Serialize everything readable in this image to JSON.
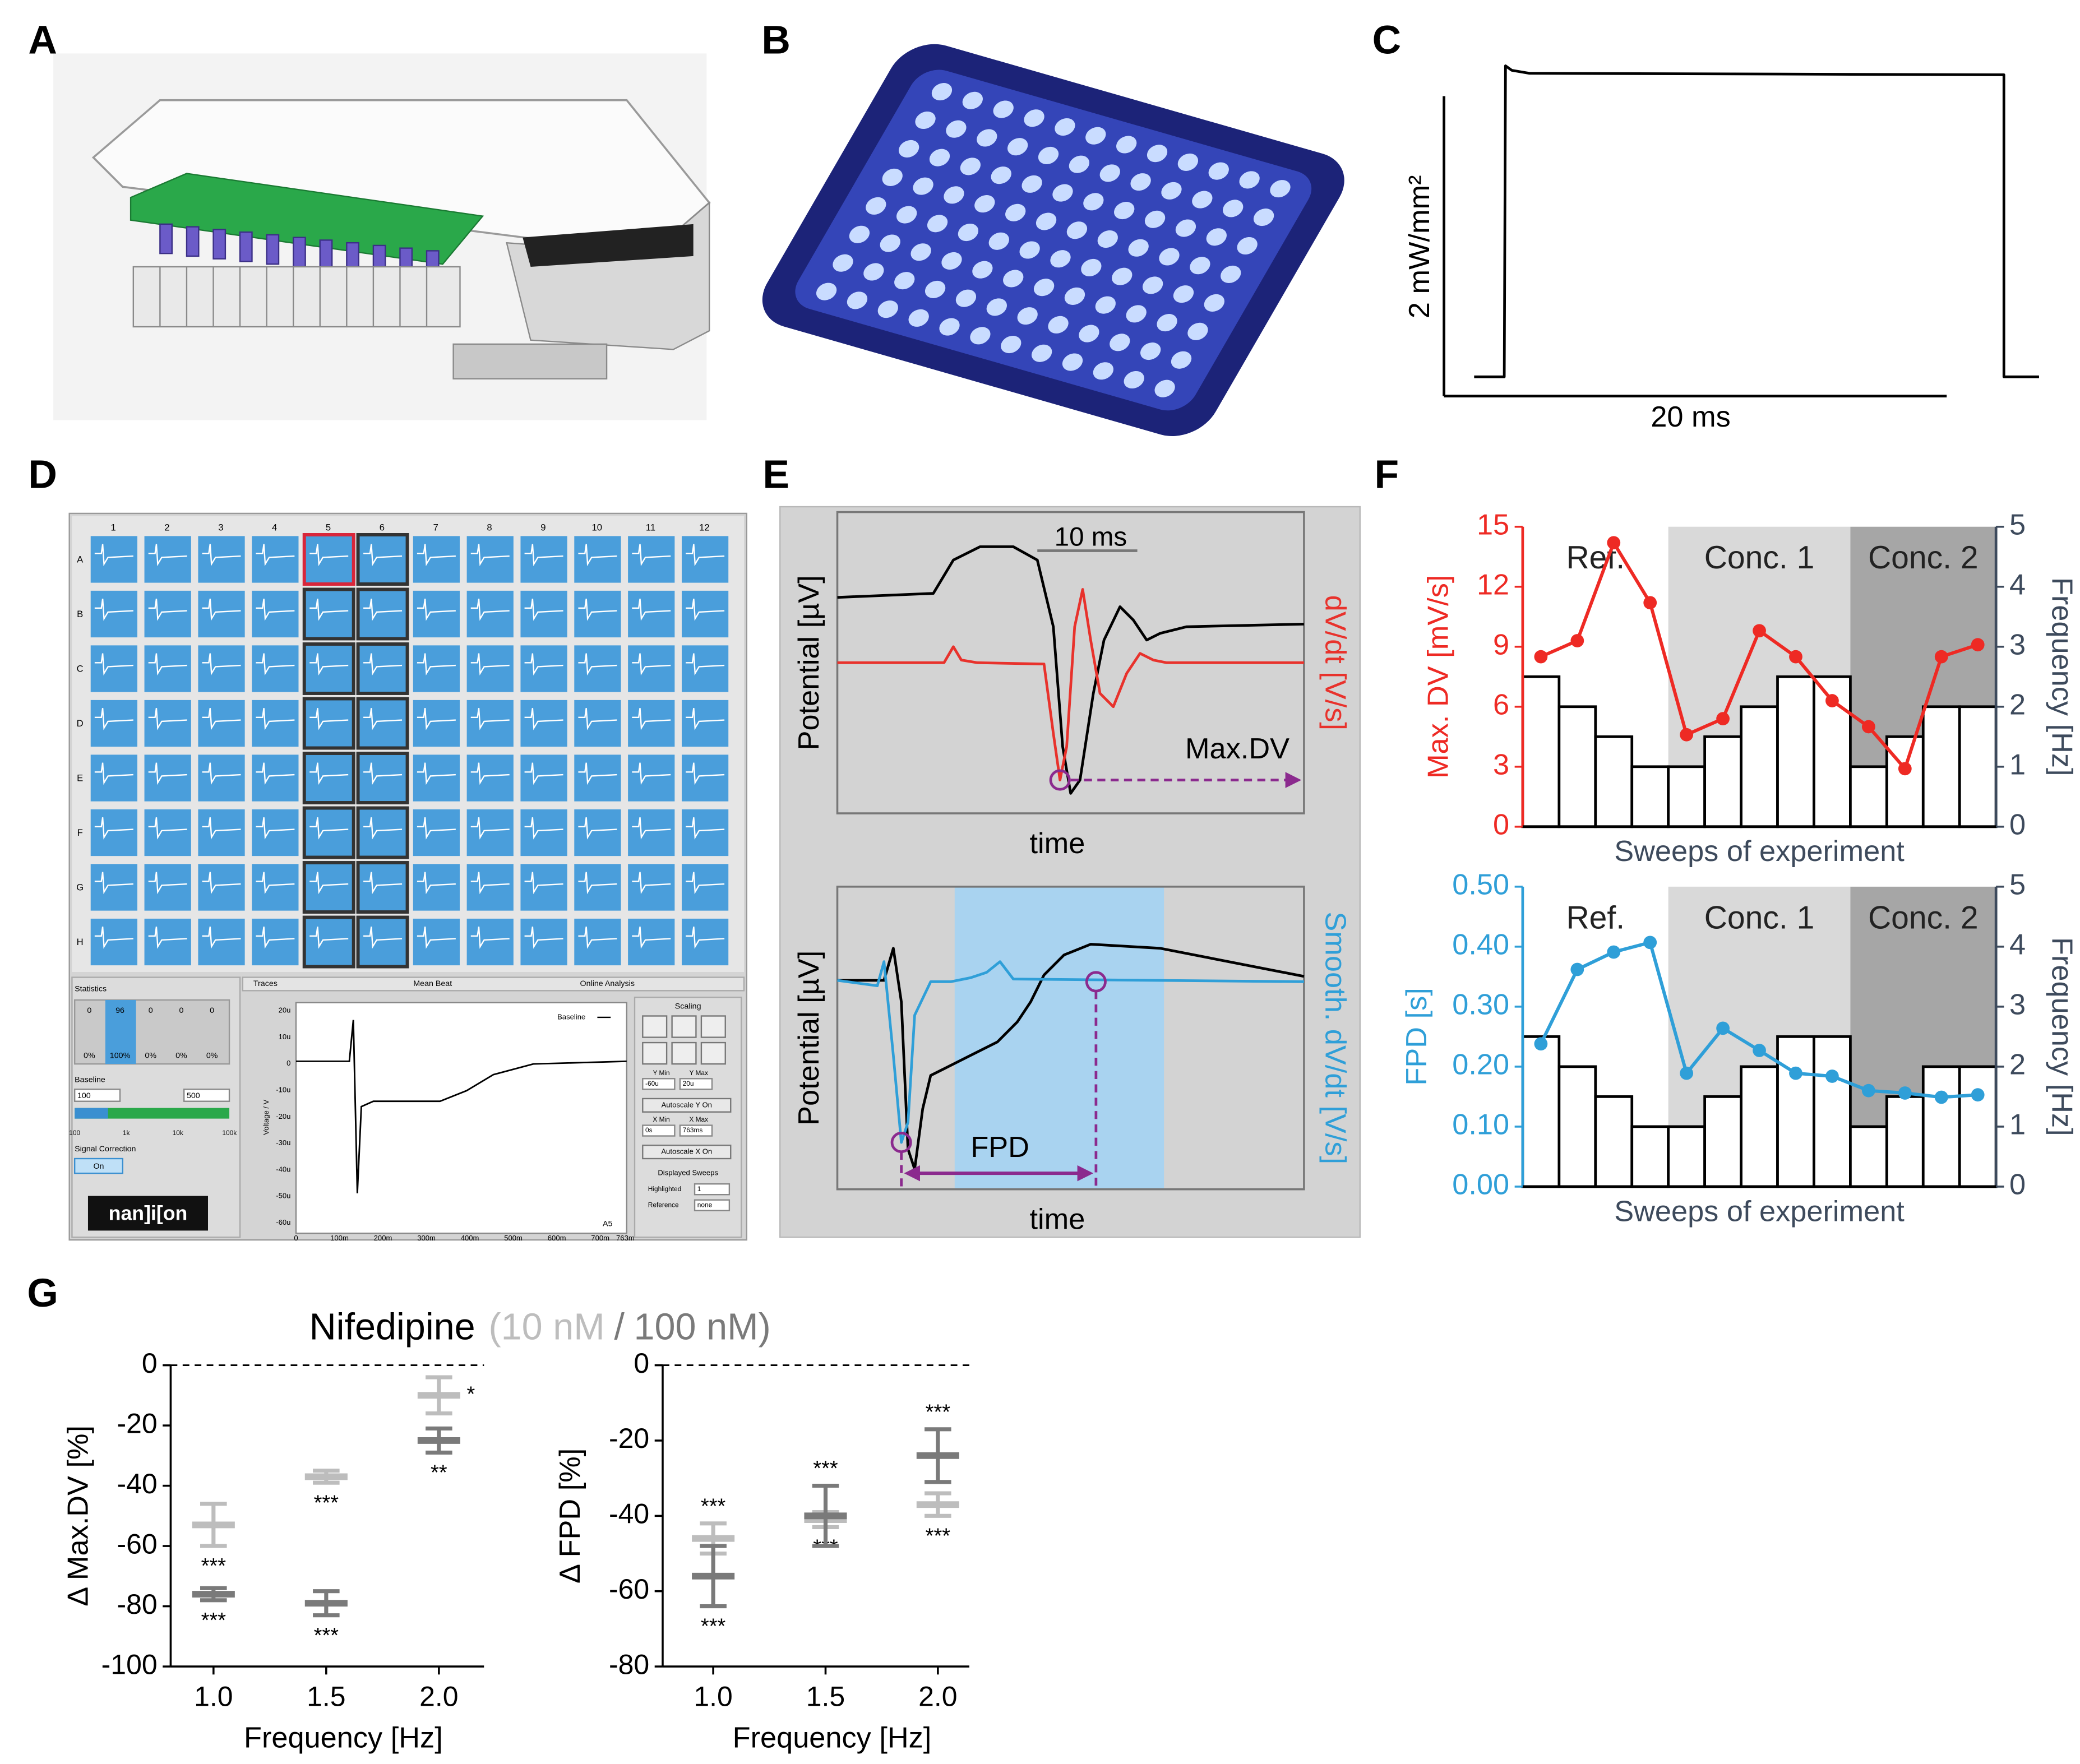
{
  "panel_labels": [
    "A",
    "B",
    "C",
    "D",
    "E",
    "F",
    "G"
  ],
  "screenshot": {
    "columns": [
      "1",
      "2",
      "3",
      "4",
      "5",
      "6",
      "7",
      "8",
      "9",
      "10",
      "11",
      "12"
    ],
    "rows": [
      "A",
      "B",
      "C",
      "D",
      "E",
      "F",
      "G",
      "H"
    ],
    "statistics": {
      "title": "Statistics",
      "counts": [
        "0",
        "96",
        "0",
        "0",
        "0"
      ],
      "percents": [
        "0%",
        "100%",
        "0%",
        "0%",
        "0%"
      ]
    },
    "baseline": {
      "title": "Baseline",
      "inputs": [
        "100",
        "500"
      ],
      "scale": [
        "100",
        "1k",
        "10k",
        "100k"
      ]
    },
    "signal_correction": {
      "title": "Signal Correction",
      "button": "On"
    },
    "logo": "nan]i[on",
    "tabs": [
      "Traces",
      "Mean Beat",
      "Online Analysis"
    ],
    "plot": {
      "legend": "Baseline",
      "y_label": "Voltage / V",
      "yticks": [
        "20u",
        "10u",
        "0",
        "-10u",
        "-20u",
        "-30u",
        "-40u",
        "-50u",
        "-60u"
      ],
      "xticks": [
        "0",
        "100m",
        "200m",
        "300m",
        "400m",
        "500m",
        "600m",
        "700m",
        "763m"
      ],
      "well": "A5"
    },
    "scaling": {
      "title": "Scaling",
      "y_labels": [
        "Y Min",
        "Y Max"
      ],
      "y_values": [
        "-60u",
        "20u"
      ],
      "y_button": "Autoscale Y On",
      "x_labels": [
        "X Min",
        "X Max"
      ],
      "x_values": [
        "0s",
        "763ms"
      ],
      "x_button": "Autoscale X On"
    },
    "sweeps": {
      "title": "Displayed Sweeps",
      "labels": [
        "Highlighted",
        "Reference"
      ],
      "values": [
        "1",
        "none"
      ]
    }
  },
  "chart_data": [
    {
      "type": "line",
      "x": [
        -1.2,
        0,
        0.05,
        0.3,
        1,
        19.9,
        19.9,
        21.3
      ],
      "series": [
        {
          "color": "#000000",
          "values": [
            0.02,
            0.02,
            2.1,
            2.07,
            2.05,
            2.04,
            0.02,
            0.02
          ]
        }
      ],
      "xlim": [
        -2.4,
        22.4
      ],
      "ylim": [
        -0.1,
        2.12
      ],
      "scale_bars": {
        "y_label": "2 mW/mm²",
        "x_label": "20 ms"
      }
    },
    {
      "type": "line",
      "xlim": [
        0,
        35
      ],
      "ylim": [
        0,
        22.6
      ],
      "y_label": "Potential [µV]",
      "y2_label": "dV/dt [V/s]",
      "y2_color": "#e8322c",
      "x_label": "time",
      "scale_bar_label": "10 ms",
      "marker_label": "Max.DV",
      "series": [
        {
          "color": "#000000",
          "x": [
            0,
            7.2,
            8.7,
            10.7,
            13.2,
            15,
            16.2,
            16.9,
            17.5,
            18.2,
            19.2,
            20,
            21.2,
            22.2,
            23.2,
            24.2,
            26.2,
            35
          ],
          "values": [
            16.2,
            16.5,
            19,
            20,
            20,
            19,
            14,
            5,
            1.5,
            2.5,
            9,
            13,
            15.5,
            14.5,
            13,
            13.5,
            14,
            14.2
          ]
        },
        {
          "color": "#e8322c",
          "x": [
            0,
            8,
            8.7,
            9.3,
            10.5,
            15.5,
            16.2,
            16.7,
            17.2,
            17.8,
            18.4,
            19,
            19.7,
            20.7,
            21.7,
            22.7,
            23.7,
            24.7,
            35
          ],
          "values": [
            11.3,
            11.3,
            12.5,
            11.5,
            11.3,
            11.2,
            6,
            2.5,
            5,
            14,
            16.8,
            13,
            9,
            8,
            10.5,
            12,
            11.5,
            11.3,
            11.3
          ]
        }
      ]
    },
    {
      "type": "line",
      "xlim": [
        0,
        35
      ],
      "ylim": [
        0,
        22.6
      ],
      "y_label": "Potential [µV]",
      "y2_label": "Smooth. dV/dt [V/s]",
      "y2_color": "#2f9fd8",
      "x_label": "time",
      "shade_xlim": [
        8.8,
        24.5
      ],
      "shade_color": "#a9d3f0",
      "fpd": {
        "label": "FPD",
        "x": [
          4.8,
          19.4
        ]
      },
      "series": [
        {
          "color": "#000000",
          "x": [
            0,
            3.5,
            4.2,
            4.8,
            5.3,
            5.8,
            6.4,
            7,
            8,
            10,
            12,
            13.5,
            14.5,
            15.5,
            17,
            19,
            24.2,
            35
          ],
          "values": [
            15.6,
            15.6,
            18,
            14,
            3,
            1.5,
            6,
            8.5,
            9,
            10,
            11,
            12.5,
            14,
            16,
            17.5,
            18.3,
            18,
            15.9
          ]
        },
        {
          "color": "#2f9fd8",
          "x": [
            0,
            3,
            3.5,
            4.2,
            4.8,
            5.3,
            5.8,
            7,
            8.5,
            10,
            11.2,
            12.2,
            13.2,
            35
          ],
          "values": [
            15.6,
            15.2,
            17,
            10,
            3.5,
            5,
            13,
            15.5,
            15.5,
            15.8,
            16.2,
            17,
            15.7,
            15.5
          ]
        }
      ]
    },
    {
      "type": "combo",
      "categories": [
        null,
        null,
        null,
        null,
        null,
        null,
        null,
        null,
        null,
        null,
        null,
        null,
        null
      ],
      "series": [
        {
          "type": "bar",
          "axis": "y2",
          "color": "#ffffff",
          "stroke": "#000000",
          "values": [
            2.5,
            2,
            1.5,
            1,
            1,
            1.5,
            2,
            2.5,
            2.5,
            1,
            1.5,
            2,
            2
          ]
        },
        {
          "type": "line",
          "color": "#ee2a24",
          "values": [
            8.5,
            9.3,
            14.2,
            11.2,
            4.6,
            5.4,
            9.8,
            8.5,
            6.3,
            5.0,
            2.9,
            8.5,
            9.1
          ]
        }
      ],
      "ylim": [
        0,
        15
      ],
      "yticks": [
        0,
        3,
        6,
        9,
        12,
        15
      ],
      "y2lim": [
        0,
        5
      ],
      "y2ticks": [
        0,
        1,
        2,
        3,
        4,
        5
      ],
      "y_label": "Max. DV [mV/s]",
      "y_color": "#ee2a24",
      "y2_label": "Frequency [Hz]",
      "y2_color": "#3d4a5c",
      "x_label": "Sweeps of experiment",
      "regions": [
        {
          "label": "Ref.",
          "start": 0,
          "end": 3,
          "color": "#ffffff"
        },
        {
          "label": "Conc. 1",
          "start": 4,
          "end": 8,
          "color": "#d9d9d9"
        },
        {
          "label": "Conc. 2",
          "start": 9,
          "end": 12,
          "color": "#a6a6a6"
        }
      ]
    },
    {
      "type": "combo",
      "categories": [
        null,
        null,
        null,
        null,
        null,
        null,
        null,
        null,
        null,
        null,
        null,
        null,
        null
      ],
      "series": [
        {
          "type": "bar",
          "axis": "y2",
          "color": "#ffffff",
          "stroke": "#000000",
          "values": [
            2.5,
            2,
            1.5,
            1,
            1,
            1.5,
            2,
            2.5,
            2.5,
            1,
            1.5,
            2,
            2
          ]
        },
        {
          "type": "line",
          "color": "#2f9fd8",
          "values": [
            0.238,
            0.362,
            0.391,
            0.407,
            0.189,
            0.264,
            0.227,
            0.189,
            0.184,
            0.16,
            0.156,
            0.149,
            0.153
          ]
        }
      ],
      "ylim": [
        0,
        0.5
      ],
      "yticks": [
        {
          "value": 0,
          "label": "0.00"
        },
        {
          "value": 0.1,
          "label": "0.10"
        },
        {
          "value": 0.2,
          "label": "0.20"
        },
        {
          "value": 0.3,
          "label": "0.30"
        },
        {
          "value": 0.4,
          "label": "0.40"
        },
        {
          "value": 0.5,
          "label": "0.50"
        }
      ],
      "y2lim": [
        0,
        5
      ],
      "y2ticks": [
        0,
        1,
        2,
        3,
        4,
        5
      ],
      "y_label": "FPD [s]",
      "y_color": "#2f9fd8",
      "y2_label": "Frequency [Hz]",
      "y2_color": "#3d4a5c",
      "x_label": "Sweeps of experiment",
      "regions": [
        {
          "label": "Ref.",
          "start": 0,
          "end": 3,
          "color": "#ffffff"
        },
        {
          "label": "Conc. 1",
          "start": 4,
          "end": 8,
          "color": "#d9d9d9"
        },
        {
          "label": "Conc. 2",
          "start": 9,
          "end": 12,
          "color": "#a6a6a6"
        }
      ]
    },
    {
      "type": "errorbar",
      "title": "Nifedipine",
      "title_marks": [
        "(",
        "/",
        ")"
      ],
      "x": [
        1.0,
        1.5,
        2.0
      ],
      "xlim": [
        0.81,
        2.2
      ],
      "xticks": [
        {
          "value": 1,
          "label": "1.0"
        },
        {
          "value": 1.5,
          "label": "1.5"
        },
        {
          "value": 2,
          "label": "2.0"
        }
      ],
      "ylim": [
        -100,
        0
      ],
      "yticks": [
        -100,
        -80,
        -60,
        -40,
        -20,
        0
      ],
      "y_label": "Δ Max.DV [%]",
      "x_label": "Frequency [Hz]",
      "series": [
        {
          "name": "10 nM",
          "color": "#bdbdbd",
          "values": [
            -53,
            -37,
            -10
          ],
          "errors": [
            7,
            2,
            6
          ],
          "annotations": [
            "***",
            "***",
            "*"
          ],
          "annotation_pos": [
            "below",
            "below",
            "right"
          ]
        },
        {
          "name": "100 nM",
          "color": "#7a7a7a",
          "values": [
            -76,
            -79,
            -25
          ],
          "errors": [
            2,
            4,
            4
          ],
          "annotations": [
            "***",
            "***",
            "**"
          ],
          "annotation_pos": [
            "below",
            "below",
            "below"
          ]
        }
      ]
    },
    {
      "type": "errorbar",
      "x": [
        1.0,
        1.5,
        2.0
      ],
      "xlim": [
        0.775,
        2.14
      ],
      "xticks": [
        {
          "value": 1,
          "label": "1.0"
        },
        {
          "value": 1.5,
          "label": "1.5"
        },
        {
          "value": 2,
          "label": "2.0"
        }
      ],
      "ylim": [
        -80,
        0
      ],
      "yticks": [
        -80,
        -60,
        -40,
        -20,
        0
      ],
      "y_label": "Δ FPD [%]",
      "x_label": "Frequency [Hz]",
      "series": [
        {
          "color": "#bdbdbd",
          "values": [
            -46,
            -41,
            -37
          ],
          "errors": [
            4,
            2,
            3
          ],
          "annotations": [
            "***",
            "***",
            "***"
          ],
          "annotation_pos": [
            "above",
            "below",
            "below"
          ]
        },
        {
          "color": "#7a7a7a",
          "values": [
            -56,
            -40,
            -24
          ],
          "errors": [
            8,
            8,
            7
          ],
          "annotations": [
            "***",
            "***",
            "***"
          ],
          "annotation_pos": [
            "below",
            "above",
            "above"
          ]
        }
      ]
    }
  ]
}
